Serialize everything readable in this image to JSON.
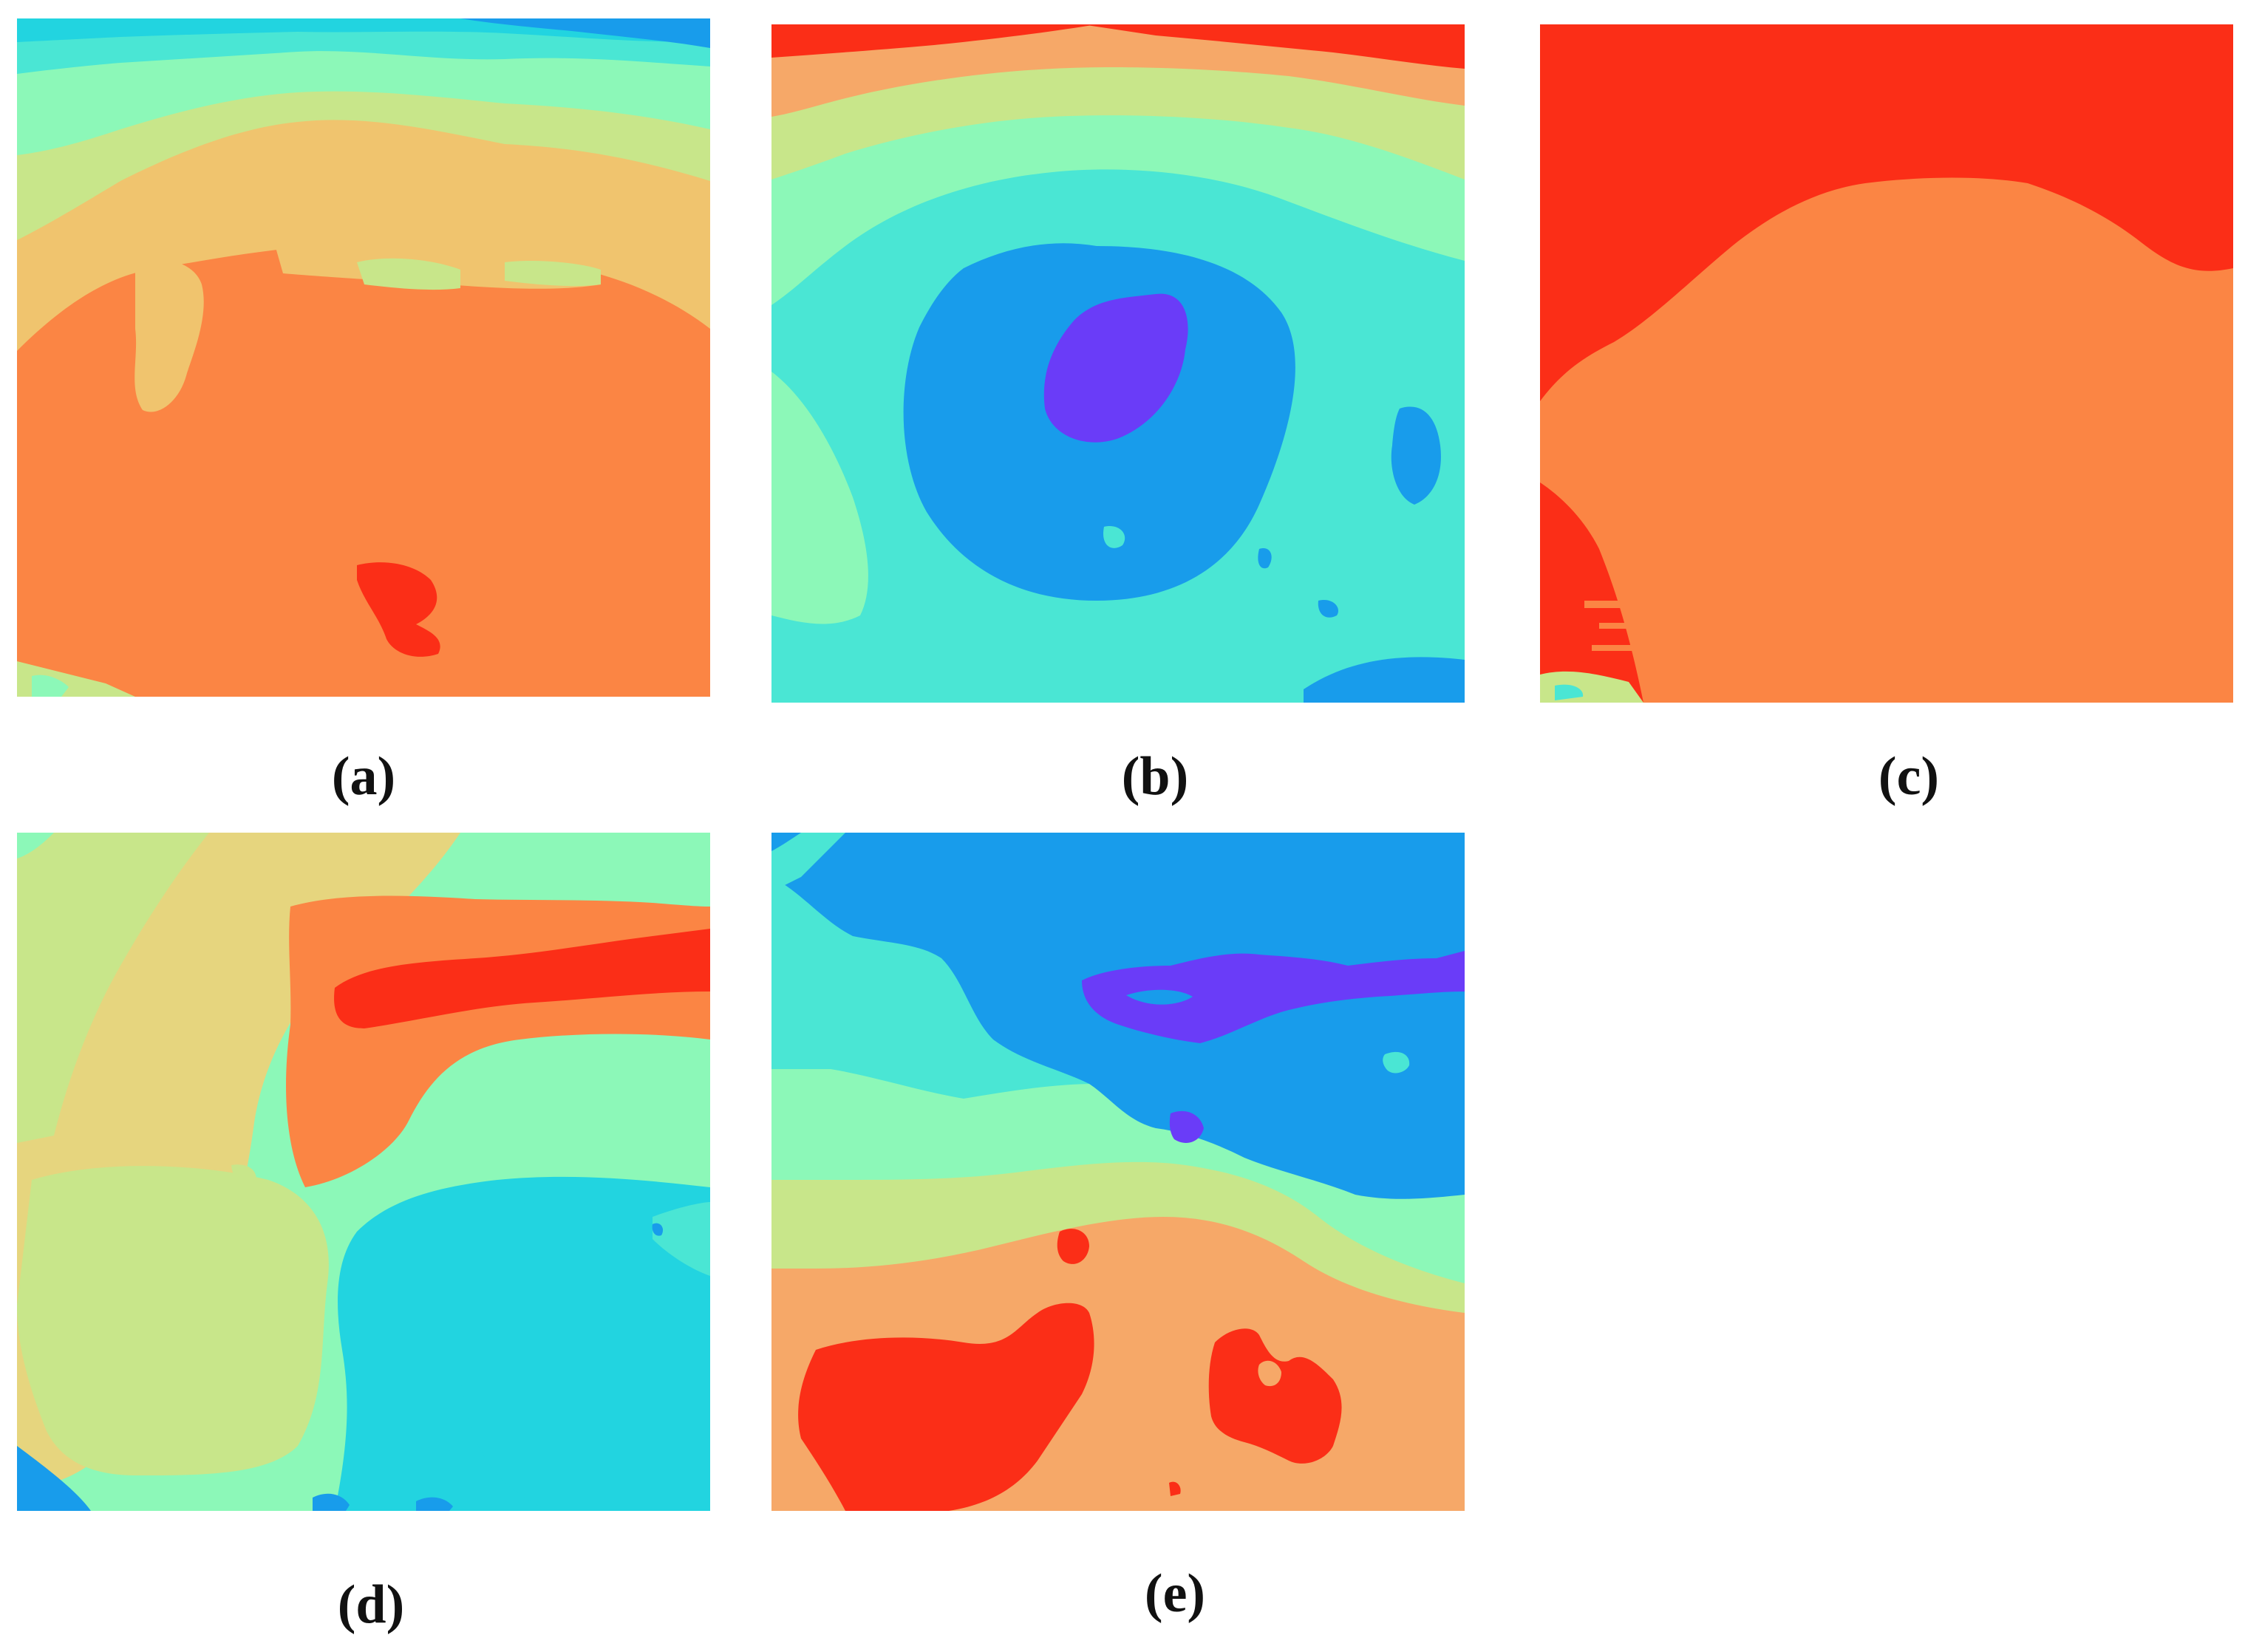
{
  "palette": {
    "deep_red": "#fb2e17",
    "orange": "#fb8544",
    "light_orange": "#f6a868",
    "tan": "#f0c46e",
    "khaki": "#e6d57e",
    "yellow_green": "#c8e68a",
    "light_green": "#a6f0a0",
    "mint": "#8cf8b8",
    "aqua": "#4ae6d4",
    "cyan": "#22d4e0",
    "sky_blue": "#189ceb",
    "violet": "#6a3cf8"
  },
  "panels": [
    {
      "id": "a",
      "caption": "(a)"
    },
    {
      "id": "b",
      "caption": "(b)"
    },
    {
      "id": "c",
      "caption": "(c)"
    },
    {
      "id": "d",
      "caption": "(d)"
    },
    {
      "id": "e",
      "caption": "(e)"
    }
  ]
}
